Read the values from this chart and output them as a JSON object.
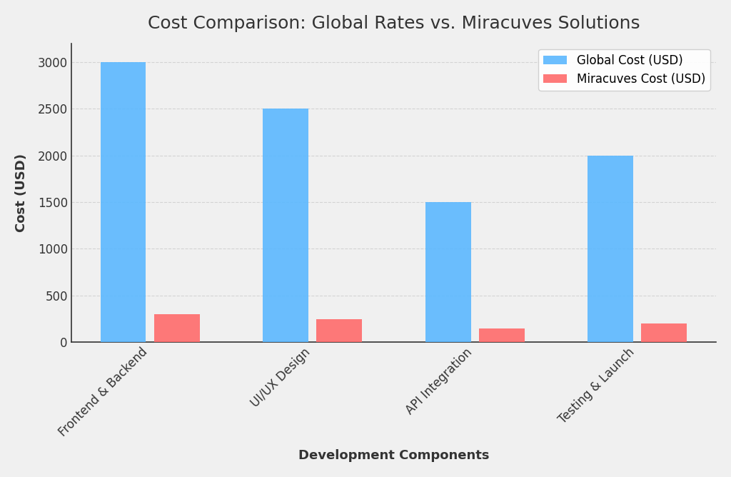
{
  "title": "Cost Comparison: Global Rates vs. Miracuves Solutions",
  "xlabel": "Development Components",
  "ylabel": "Cost (USD)",
  "categories": [
    "Frontend & Backend",
    "UI/UX Design",
    "API Integration",
    "Testing & Launch"
  ],
  "global_costs": [
    3000,
    2500,
    1500,
    2000
  ],
  "miracuves_costs": [
    300,
    250,
    150,
    200
  ],
  "global_color": "#5BB8FF",
  "miracuves_color": "#FF6B6B",
  "legend_global": "Global Cost (USD)",
  "legend_miracuves": "Miracuves Cost (USD)",
  "background_color": "#F0F0F0",
  "plot_bg_color": "#F0F0F0",
  "ylim": [
    0,
    3200
  ],
  "yticks": [
    0,
    500,
    1000,
    1500,
    2000,
    2500,
    3000
  ],
  "bar_width": 0.28,
  "bar_gap": 0.05,
  "title_fontsize": 18,
  "label_fontsize": 13,
  "tick_fontsize": 12,
  "legend_fontsize": 12,
  "grid_color": "#CCCCCC",
  "grid_linestyle": "--",
  "grid_alpha": 0.8,
  "spine_color": "#333333",
  "text_color": "#333333"
}
